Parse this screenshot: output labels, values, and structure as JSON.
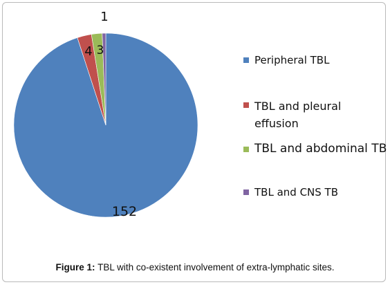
{
  "chart_data": {
    "type": "pie",
    "categories": [
      "Peripheral TBL",
      "TBL and pleural\neffusion",
      "TBL and abdominal TB",
      "TBL and CNS TB"
    ],
    "values": [
      152,
      4,
      3,
      1
    ],
    "colors": [
      "#4f81bd",
      "#c0504d",
      "#9bbb59",
      "#8064a2"
    ],
    "legend_placement": "right",
    "data_labels": [
      "152",
      "4",
      "3",
      "1"
    ]
  },
  "caption": {
    "label": "Figure 1:",
    "text": " TBL with co-existent involvement of extra-lymphatic sites."
  }
}
